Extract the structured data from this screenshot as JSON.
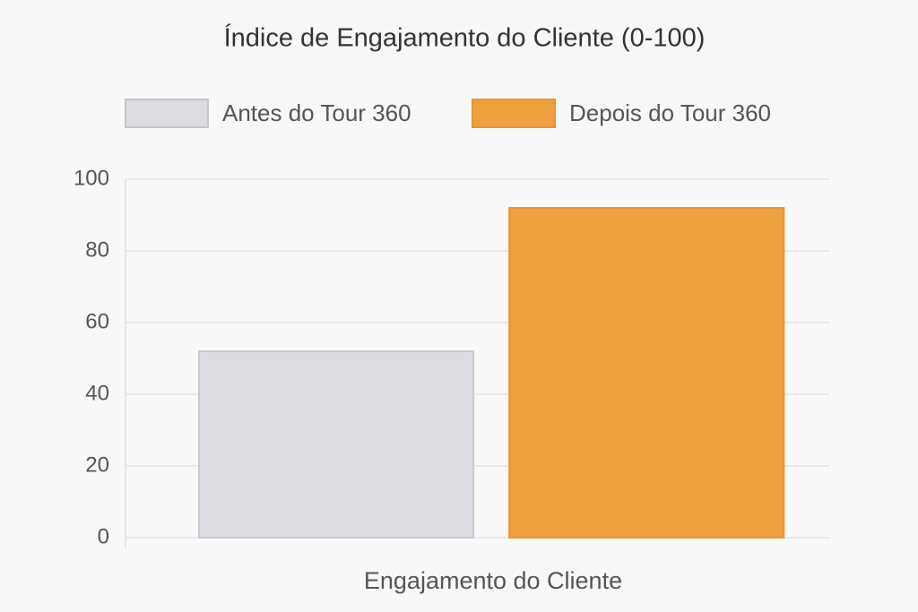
{
  "chart_data": {
    "type": "bar",
    "title": "Índice de Engajamento do Cliente (0-100)",
    "categories": [
      "Engajamento do Cliente"
    ],
    "series": [
      {
        "name": "Antes do Tour 360",
        "color": "#dcdde2",
        "values": [
          52
        ]
      },
      {
        "name": "Depois do Tour 360",
        "color": "#eea03f",
        "values": [
          92
        ]
      }
    ],
    "ylim": [
      0,
      100
    ],
    "yticks": [
      0,
      20,
      40,
      60,
      80,
      100
    ],
    "grid": true,
    "legend": "top"
  }
}
